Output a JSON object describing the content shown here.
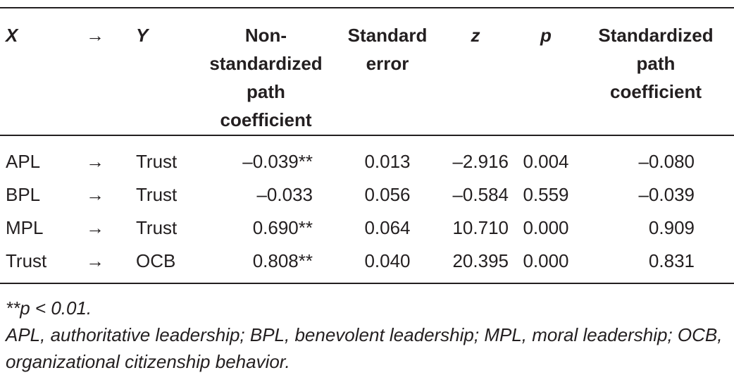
{
  "table": {
    "header": [
      [
        "X"
      ],
      [
        "→"
      ],
      [
        "Y"
      ],
      [
        "Non-",
        "standardized",
        "path",
        "coefficient"
      ],
      [
        "Standard",
        "error"
      ],
      [
        "z"
      ],
      [
        "p"
      ],
      [
        "Standardized",
        "path",
        "coefficient"
      ]
    ],
    "rows": [
      [
        "APL",
        "→",
        "Trust",
        "–0.039**",
        "0.013",
        "–2.916",
        "0.004",
        "–0.080"
      ],
      [
        "BPL",
        "→",
        "Trust",
        "–0.033",
        "0.056",
        "–0.584",
        "0.559",
        "–0.039"
      ],
      [
        "MPL",
        "→",
        "Trust",
        "0.690**",
        "0.064",
        "10.710",
        "0.000",
        "0.909"
      ],
      [
        "Trust",
        "→",
        "OCB",
        "0.808**",
        "0.040",
        "20.395",
        "0.000",
        "0.831"
      ]
    ]
  },
  "notes": [
    "**p < 0.01.",
    "APL, authoritative leadership; BPL, benevolent leadership; MPL, moral leadership; OCB, organizational citizenship behavior."
  ]
}
